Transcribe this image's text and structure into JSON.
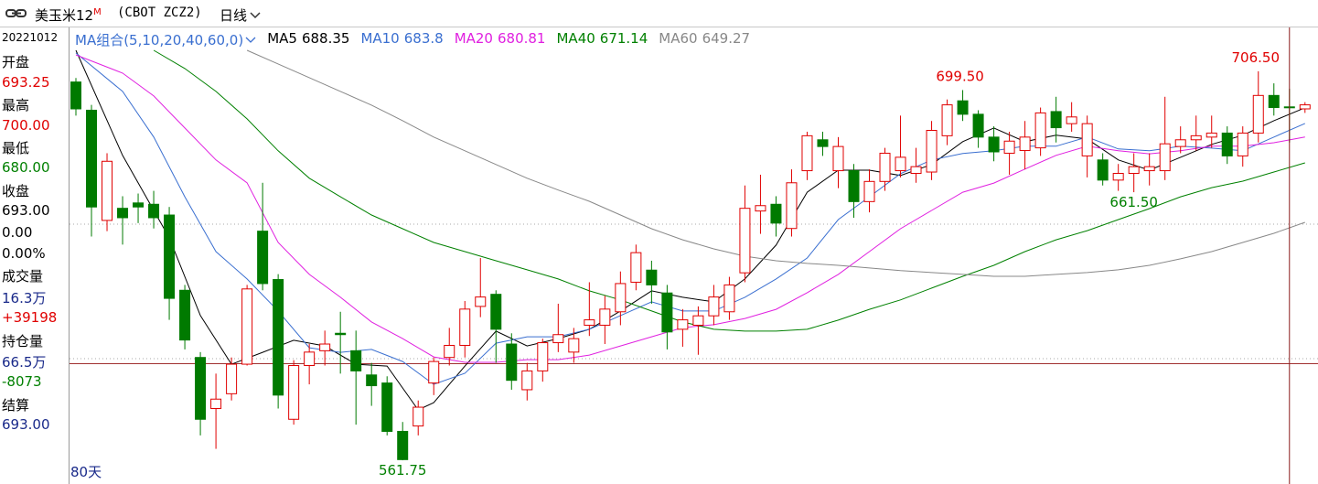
{
  "header": {
    "name": "美玉米12",
    "name_sup": "M",
    "code": "(CBOT ZCZ2)",
    "period": "日线"
  },
  "info_panel": [
    {
      "text": "20221012",
      "color": "#000000"
    },
    {
      "text": "开盘",
      "color": "#000000"
    },
    {
      "text": "693.25",
      "color": "#e00000"
    },
    {
      "text": "最高",
      "color": "#000000"
    },
    {
      "text": "700.00",
      "color": "#e00000"
    },
    {
      "text": "最低",
      "color": "#000000"
    },
    {
      "text": "680.00",
      "color": "#008000"
    },
    {
      "text": "收盘",
      "color": "#000000"
    },
    {
      "text": "693.00",
      "color": "#000000"
    },
    {
      "text": "0.00",
      "color": "#000000"
    },
    {
      "text": "0.00%",
      "color": "#000000"
    },
    {
      "text": "成交量",
      "color": "#000000"
    },
    {
      "text": "16.3万",
      "color": "#1a2a8a"
    },
    {
      "text": "+39198",
      "color": "#e00000"
    },
    {
      "text": "持仓量",
      "color": "#000000"
    },
    {
      "text": "66.5万",
      "color": "#1a2a8a"
    },
    {
      "text": "-8073",
      "color": "#008000"
    },
    {
      "text": "结算",
      "color": "#000000"
    },
    {
      "text": "693.00",
      "color": "#1a2a8a"
    }
  ],
  "chart_data": {
    "type": "candlestick",
    "indicator_label": "MA组合(5,10,20,40,60,0)",
    "indicator_color": "#3a6fd0",
    "period_label": "80天",
    "ylim": [
      553.6,
      722.8
    ],
    "up_color": "#e00000",
    "down_color": "#007a00",
    "selected_index": 78,
    "open": [
      702.5,
      692,
      651,
      655.5,
      657.5,
      657,
      653,
      625,
      600,
      581,
      586.5,
      597.5,
      647,
      629,
      577,
      597,
      602.5,
      609,
      602.5,
      593.5,
      590.5,
      572.5,
      574.5,
      590.5,
      600,
      604.5,
      619,
      623.5,
      605,
      588,
      595,
      605.5,
      602,
      612,
      612,
      617,
      628,
      632.5,
      624,
      610.5,
      612,
      615.5,
      617,
      631.5,
      654.5,
      657,
      648,
      669.5,
      681,
      669.5,
      669.5,
      658,
      665.5,
      669.5,
      668.5,
      669,
      682.5,
      695.5,
      690.5,
      682,
      676,
      677,
      678,
      691.5,
      687,
      675,
      673.5,
      666,
      668.5,
      669.5,
      669.5,
      678.5,
      681,
      682,
      683.5,
      675,
      683.5,
      697.5,
      693.25,
      692.5
    ],
    "high": [
      704,
      694,
      676,
      660,
      661,
      662,
      656,
      627,
      602,
      594,
      600,
      627,
      665,
      631,
      599,
      605,
      610,
      617,
      610,
      598,
      593,
      576,
      584,
      600,
      611,
      621,
      637,
      625,
      609,
      598,
      607,
      620,
      611,
      628,
      623,
      632,
      642,
      636,
      627,
      618,
      619,
      627,
      630,
      664,
      668,
      660,
      670,
      684,
      684,
      682,
      672,
      670,
      678,
      690,
      678,
      688,
      696,
      699.5,
      692,
      686,
      684,
      688,
      693,
      697,
      695,
      690,
      676,
      672,
      676,
      676,
      697,
      686,
      690,
      690,
      686,
      686,
      706.5,
      702,
      700,
      695
    ],
    "low": [
      690,
      645,
      647,
      642,
      650,
      648,
      614,
      603,
      571,
      566,
      584,
      597,
      625,
      581,
      575,
      590,
      597,
      594,
      575,
      582,
      571,
      561.75,
      571,
      586,
      597,
      600,
      615,
      598,
      588,
      584,
      591,
      602,
      598,
      608,
      605,
      612,
      625,
      620,
      603,
      604,
      601,
      612,
      614,
      628,
      646,
      645,
      645,
      666,
      675,
      663,
      652,
      654,
      662,
      667,
      665,
      666,
      679,
      688,
      678,
      673,
      668,
      670,
      675,
      680,
      684,
      667,
      664,
      662,
      661.5,
      664,
      666,
      676,
      677,
      678,
      672,
      671,
      680,
      690,
      680,
      691
    ],
    "close": [
      692.5,
      656,
      673,
      652,
      656,
      652,
      622,
      606.5,
      577,
      584.5,
      597.5,
      625.5,
      627.5,
      586,
      597,
      602,
      605,
      608.5,
      595,
      589.5,
      572.5,
      562,
      581.5,
      598.5,
      604.5,
      618,
      622.5,
      610.5,
      591.5,
      595,
      605.5,
      608.5,
      607,
      614,
      618,
      627.5,
      639,
      627,
      609.5,
      614,
      615.5,
      622.5,
      627,
      655.5,
      656.5,
      650,
      665,
      682.5,
      678.5,
      678.5,
      658,
      665.5,
      676,
      674.5,
      671,
      684.5,
      694,
      690.5,
      682,
      676.5,
      680.5,
      682,
      691,
      685.5,
      689.5,
      687,
      666,
      668.5,
      671,
      671,
      679.5,
      681,
      682.5,
      683.5,
      675,
      683.5,
      697.5,
      693,
      693,
      694
    ],
    "series": [
      {
        "name": "MA5",
        "value": 688.35,
        "color": "#000000",
        "x": [
          0,
          3,
          6,
          8,
          10,
          12,
          14,
          16,
          18,
          20,
          22,
          23,
          25,
          27,
          29,
          31,
          33,
          35,
          37,
          39,
          41,
          43,
          45,
          47,
          49,
          51,
          53,
          55,
          57,
          59,
          61,
          63,
          65,
          67,
          69,
          71,
          73,
          75,
          77,
          79
        ],
        "values": [
          714.3,
          675.2,
          644.5,
          615.6,
          597.5,
          601.9,
          606.4,
          604.3,
          597.5,
          596.8,
          580.5,
          583.2,
          596.8,
          609.8,
          604.3,
          607.0,
          610.5,
          617.3,
          624.8,
          622.4,
          620.7,
          629.2,
          641.8,
          661.5,
          669.7,
          669.7,
          667.7,
          671.8,
          680.3,
          685.4,
          680.3,
          682.7,
          681.3,
          673.5,
          669.7,
          674.5,
          679.3,
          682.7,
          688.1,
          692.9
        ]
      },
      {
        "name": "MA10",
        "value": 683.8,
        "color": "#3a6fd0",
        "x": [
          0,
          3,
          5,
          7,
          9,
          11,
          13,
          15,
          17,
          19,
          21,
          23,
          25,
          27,
          29,
          31,
          33,
          35,
          37,
          39,
          41,
          43,
          45,
          47,
          49,
          51,
          53,
          55,
          57,
          59,
          61,
          63,
          65,
          67,
          69,
          71,
          73,
          75,
          77,
          79
        ],
        "values": [
          713.3,
          699.0,
          682.0,
          659.8,
          639.4,
          629.2,
          617.3,
          603.6,
          601.9,
          603.0,
          598.5,
          590.0,
          594.1,
          605.3,
          607.7,
          607.7,
          610.5,
          615.6,
          620.7,
          617.3,
          617.3,
          622.4,
          629.2,
          637.0,
          651.3,
          659.8,
          668.4,
          673.5,
          675.9,
          676.9,
          678.6,
          678.6,
          682.0,
          677.6,
          676.9,
          678.6,
          677.9,
          676.9,
          682.0,
          687.1
        ]
      },
      {
        "name": "MA20",
        "value": 680.81,
        "color": "#e020e0",
        "x": [
          0,
          3,
          5,
          7,
          9,
          11,
          13,
          15,
          17,
          19,
          21,
          23,
          25,
          27,
          29,
          31,
          33,
          35,
          37,
          39,
          41,
          43,
          45,
          47,
          49,
          51,
          53,
          55,
          57,
          59,
          61,
          63,
          65,
          67,
          69,
          71,
          73,
          75,
          77,
          79
        ],
        "values": [
          712.6,
          705.8,
          697.3,
          685.4,
          673.5,
          665.0,
          642.8,
          630.9,
          622.4,
          613.2,
          607.0,
          600.2,
          598.2,
          598.2,
          599.2,
          599.2,
          600.9,
          604.3,
          607.7,
          611.1,
          612.2,
          614.5,
          617.9,
          624.1,
          630.9,
          639.4,
          647.9,
          654.7,
          661.5,
          664.9,
          670.1,
          675.2,
          678.6,
          676.9,
          675.8,
          676.9,
          678.6,
          678.6,
          679.9,
          682.0
        ]
      },
      {
        "name": "MA40",
        "value": 671.14,
        "color": "#008000",
        "x": [
          5,
          7,
          9,
          11,
          13,
          15,
          17,
          19,
          21,
          23,
          25,
          27,
          29,
          31,
          33,
          35,
          37,
          39,
          41,
          43,
          45,
          47,
          49,
          51,
          53,
          55,
          57,
          59,
          61,
          63,
          65,
          67,
          69,
          71,
          73,
          75,
          77,
          79
        ],
        "values": [
          714.3,
          707.5,
          699.0,
          688.8,
          676.9,
          666.7,
          659.8,
          653.0,
          647.9,
          642.8,
          639.4,
          636.0,
          632.6,
          629.2,
          624.8,
          621.4,
          617.3,
          613.2,
          610.5,
          609.8,
          609.8,
          610.5,
          613.9,
          617.9,
          621.4,
          625.8,
          630.2,
          634.3,
          639.4,
          643.8,
          647.2,
          651.3,
          655.4,
          659.8,
          663.2,
          665.6,
          669.0,
          672.4
        ]
      },
      {
        "name": "MA60",
        "value": 649.27,
        "color": "#888888",
        "x": [
          11,
          13,
          15,
          17,
          19,
          21,
          23,
          25,
          27,
          29,
          31,
          33,
          35,
          37,
          39,
          41,
          43,
          45,
          47,
          49,
          51,
          53,
          55,
          57,
          59,
          61,
          63,
          65,
          67,
          69,
          71,
          73,
          75,
          77,
          79
        ],
        "values": [
          714.3,
          709.2,
          704.1,
          699.0,
          693.9,
          688.1,
          682.0,
          676.9,
          671.8,
          666.7,
          662.3,
          658.1,
          653.0,
          647.9,
          643.8,
          640.4,
          637.7,
          636.0,
          635.0,
          634.3,
          633.3,
          632.3,
          631.6,
          630.9,
          630.2,
          630.2,
          630.9,
          631.6,
          632.6,
          634.3,
          636.7,
          639.4,
          642.8,
          646.2,
          650.3
        ]
      }
    ],
    "annotations": [
      {
        "label": "706.50",
        "value": 706.5,
        "x": 76,
        "color": "#e00000"
      },
      {
        "label": "699.50",
        "value": 699.5,
        "x": 57,
        "color": "#e00000"
      },
      {
        "label": "661.50",
        "value": 661.5,
        "x": 68,
        "color": "#008000"
      },
      {
        "label": "561.75",
        "value": 561.75,
        "x": 21,
        "color": "#008000"
      }
    ]
  }
}
